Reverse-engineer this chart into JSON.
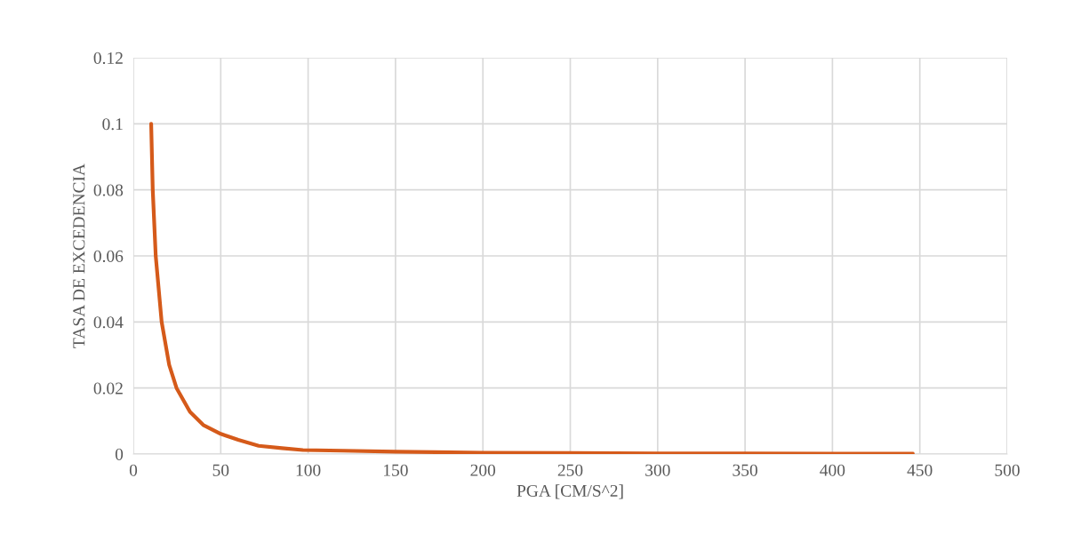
{
  "chart_data": {
    "type": "line",
    "xlabel": "PGA [CM/S^2]",
    "ylabel": "TASA DE EXCEDENCIA",
    "xlim": [
      0,
      500
    ],
    "xticks": [
      0,
      50,
      100,
      150,
      200,
      250,
      300,
      350,
      400,
      450,
      500
    ],
    "ylim": [
      0,
      0.12
    ],
    "yticks": [
      0,
      0.02,
      0.04,
      0.06,
      0.08,
      0.1,
      0.12
    ],
    "grid": true,
    "marker": "none",
    "line_style": "solid",
    "series": [
      {
        "color": "#d55a1a",
        "x": [
          10.2,
          11.1,
          12.8,
          16.2,
          20.5,
          24.7,
          32.4,
          40,
          50,
          60,
          71.7,
          85,
          97,
          120,
          150,
          200,
          250,
          300,
          350,
          400,
          446
        ],
        "values": [
          0.1,
          0.08,
          0.06,
          0.04,
          0.027,
          0.02,
          0.0128,
          0.0088,
          0.0061,
          0.0043,
          0.0025,
          0.0018,
          0.0012,
          0.001,
          0.0007,
          0.0004,
          0.0003,
          0.0002,
          0.0002,
          0.0001,
          0.0001
        ]
      }
    ]
  }
}
